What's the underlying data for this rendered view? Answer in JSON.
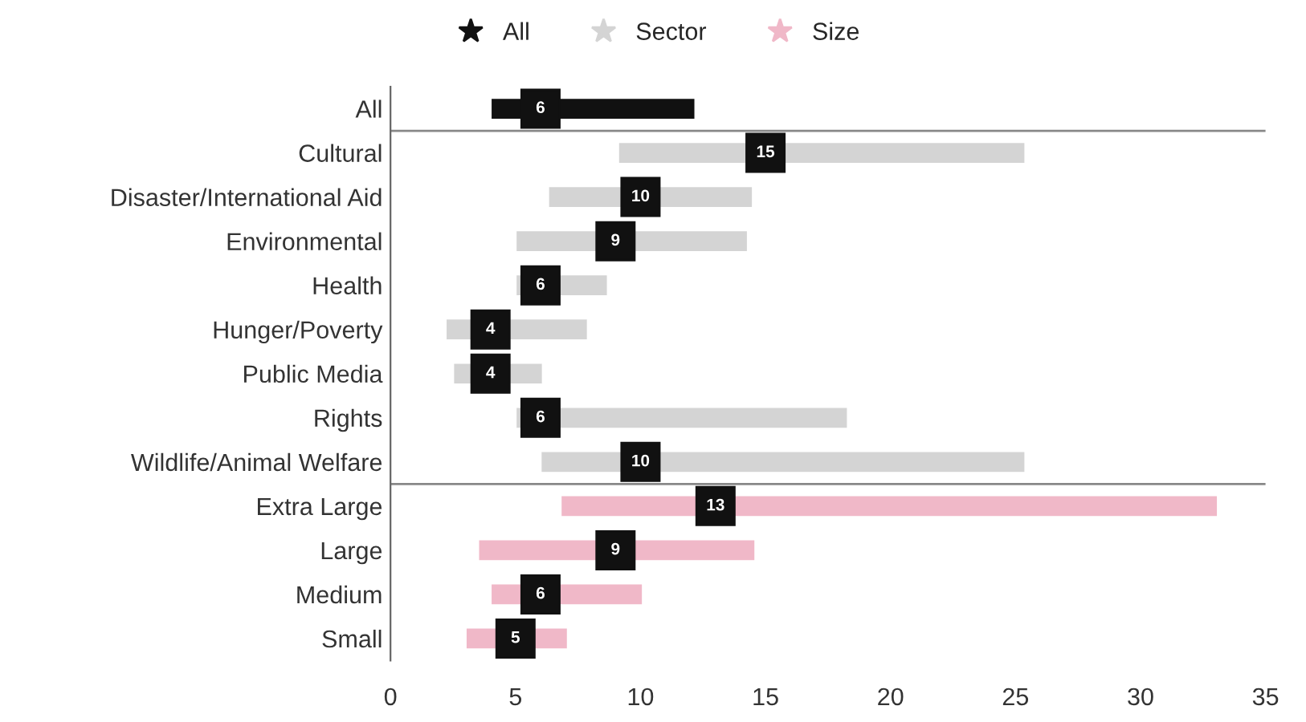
{
  "chart_data": {
    "type": "bar",
    "orientation": "horizontal",
    "categories": [
      "All",
      "Cultural",
      "Disaster/International Aid",
      "Environmental",
      "Health",
      "Hunger/Poverty",
      "Public Media",
      "Rights",
      "Wildlife/Animal Welfare",
      "Extra Large",
      "Large",
      "Medium",
      "Small"
    ],
    "series": [
      {
        "name": "All",
        "color": "#111111",
        "base": [
          4,
          null,
          null,
          null,
          null,
          null,
          null,
          null,
          null,
          null,
          null,
          null,
          null
        ],
        "values": [
          8.2,
          null,
          null,
          null,
          null,
          null,
          null,
          null,
          null,
          null,
          null,
          null,
          null
        ]
      },
      {
        "name": "Sector",
        "color": "#d4d4d4",
        "base": [
          null,
          9.1,
          6.3,
          5,
          5,
          2.2,
          2.5,
          5,
          6,
          null,
          null,
          null,
          null
        ],
        "values": [
          null,
          16.3,
          8.2,
          9.3,
          3.7,
          5.7,
          3.6,
          13.3,
          19.4,
          null,
          null,
          null,
          null
        ]
      },
      {
        "name": "Size",
        "color": "#f0b8c8",
        "base": [
          null,
          null,
          null,
          null,
          null,
          null,
          null,
          null,
          null,
          6.8,
          3.5,
          4,
          3
        ],
        "values": [
          null,
          null,
          null,
          null,
          null,
          null,
          null,
          null,
          null,
          26.3,
          11.1,
          6.1,
          4.1
        ]
      },
      {
        "type": "scatter",
        "color": "#111111",
        "marker": "square",
        "values": [
          6,
          15,
          10,
          9,
          6,
          4,
          4,
          6,
          10,
          13,
          9,
          6,
          5
        ],
        "value_labels": [
          "6",
          "15",
          "10",
          "9",
          "6",
          "4",
          "4",
          "6",
          "10",
          "13",
          "9",
          "6",
          "5"
        ]
      }
    ],
    "xlim": [
      0,
      35
    ],
    "xticks": [
      0,
      5,
      10,
      15,
      20,
      25,
      30,
      35
    ],
    "legend": "top",
    "marker": "star",
    "grid": false
  }
}
